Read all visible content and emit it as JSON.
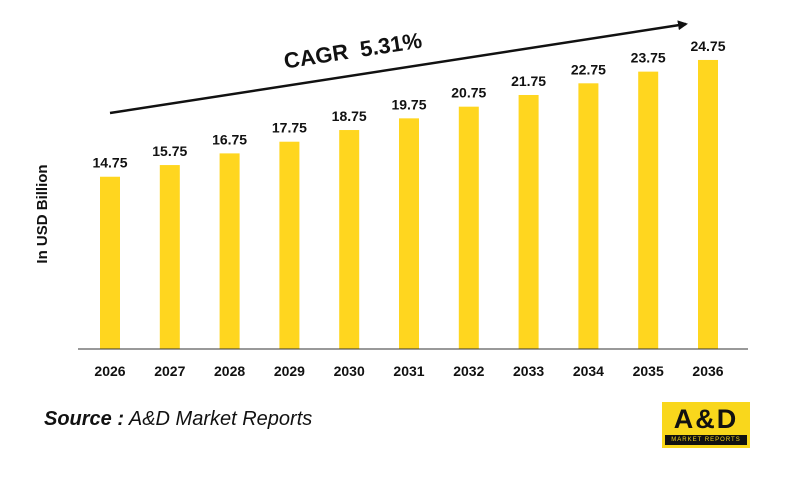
{
  "chart_data": {
    "type": "bar",
    "categories": [
      "2026",
      "2027",
      "2028",
      "2029",
      "2030",
      "2031",
      "2032",
      "2033",
      "2034",
      "2035",
      "2036"
    ],
    "values": [
      14.75,
      15.75,
      16.75,
      17.75,
      18.75,
      19.75,
      20.75,
      21.75,
      22.75,
      23.75,
      24.75
    ],
    "value_labels": [
      "14.75",
      "15.75",
      "16.75",
      "17.75",
      "18.75",
      "19.75",
      "20.75",
      "21.75",
      "22.75",
      "23.75",
      "24.75"
    ],
    "title": "",
    "xlabel": "",
    "ylabel": "In USD Billion",
    "ylim": [
      0,
      28
    ],
    "grid": false,
    "y_ticks_shown": false,
    "bar_color": "#ffd61f",
    "annotation": "CAGR  5.31%"
  },
  "source": {
    "prefix": "Source :",
    "text": "A&D Market Reports"
  },
  "logo": {
    "main": "A&D",
    "sub": "MARKET REPORTS",
    "background": "#f9d71c"
  }
}
